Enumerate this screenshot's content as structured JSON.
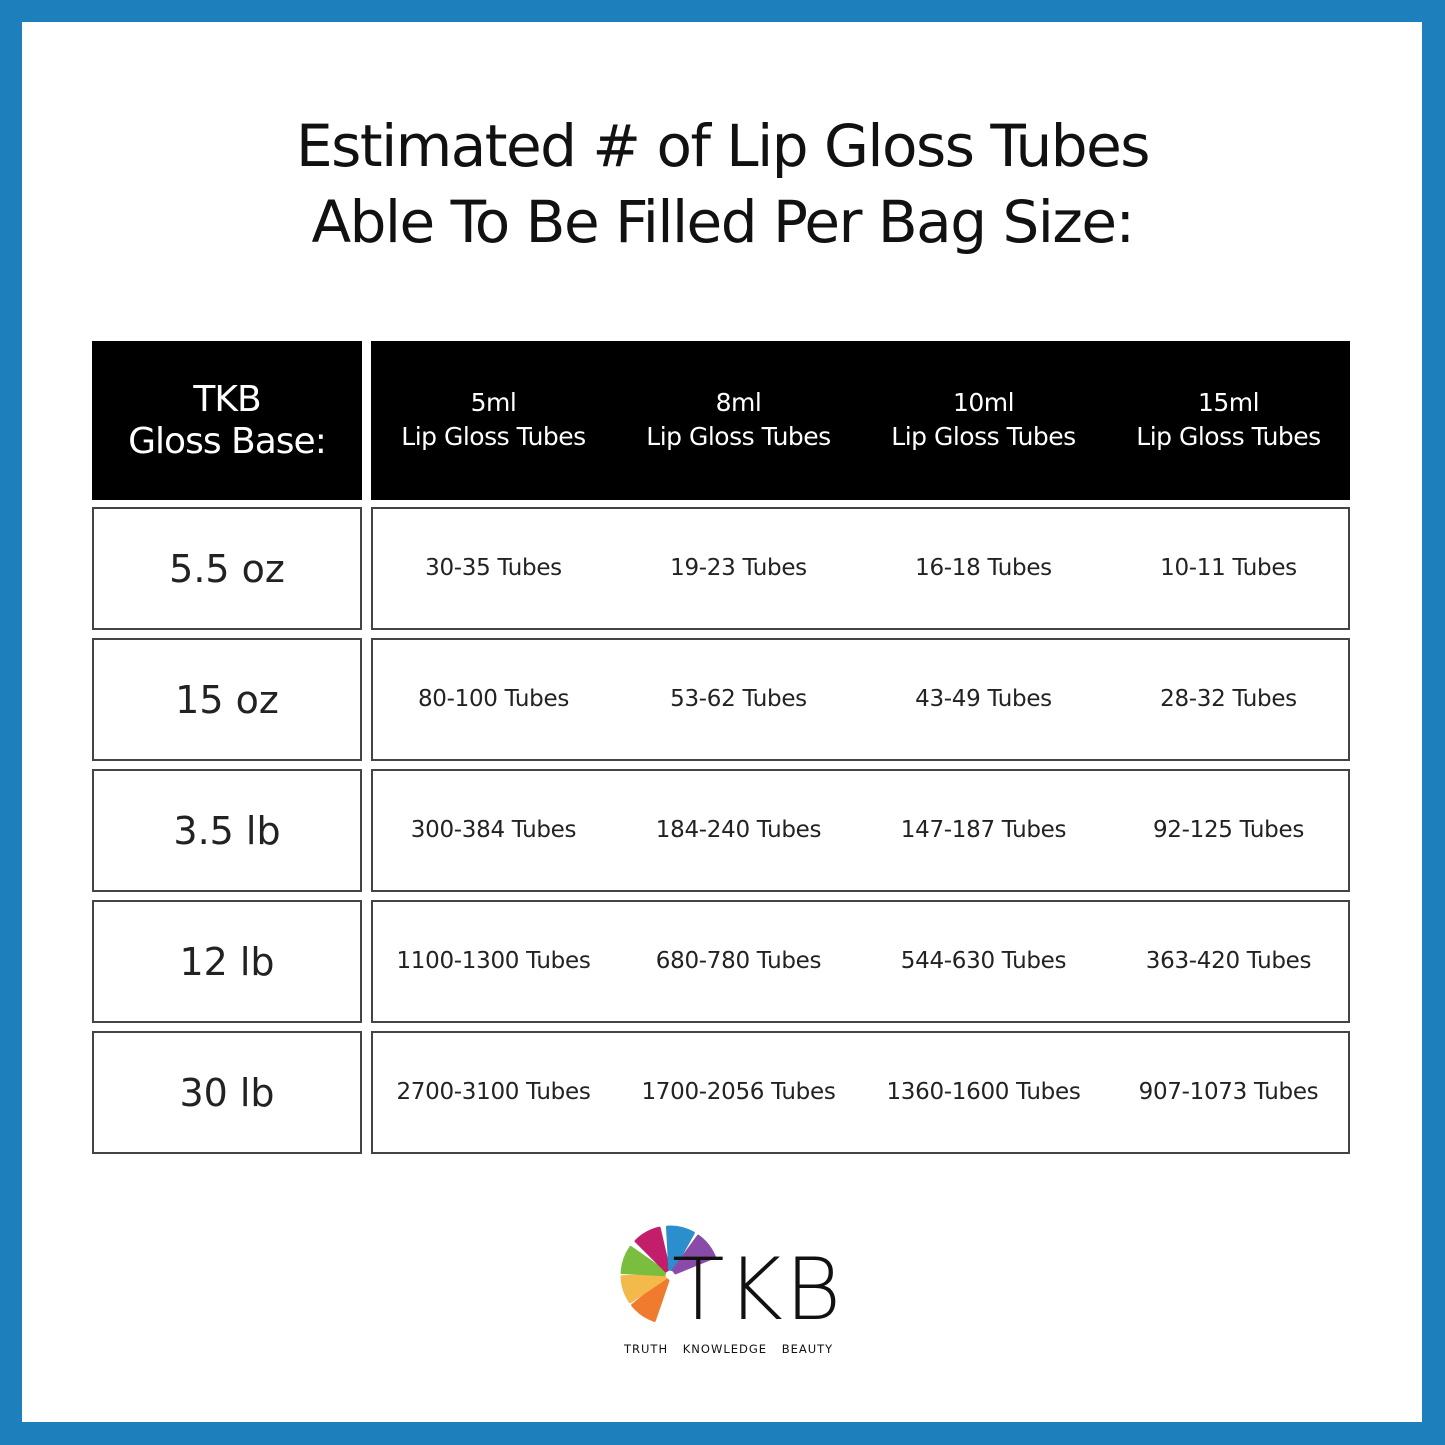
{
  "title": {
    "line1": "Estimated # of Lip Gloss Tubes",
    "line2": "Able To Be Filled Per Bag Size:"
  },
  "table": {
    "row_header": {
      "line1": "TKB",
      "line2": "Gloss Base:"
    },
    "columns": [
      {
        "size": "5ml",
        "label": "Lip Gloss Tubes"
      },
      {
        "size": "8ml",
        "label": "Lip Gloss Tubes"
      },
      {
        "size": "10ml",
        "label": "Lip Gloss Tubes"
      },
      {
        "size": "15ml",
        "label": "Lip Gloss Tubes"
      }
    ],
    "rows": [
      {
        "size": "5.5 oz",
        "values": [
          "30-35 Tubes",
          "19-23 Tubes",
          "16-18 Tubes",
          "10-11 Tubes"
        ]
      },
      {
        "size": "15 oz",
        "values": [
          "80-100 Tubes",
          "53-62 Tubes",
          "43-49 Tubes",
          "28-32 Tubes"
        ]
      },
      {
        "size": "3.5 lb",
        "values": [
          "300-384 Tubes",
          "184-240 Tubes",
          "147-187 Tubes",
          "92-125 Tubes"
        ]
      },
      {
        "size": "12 lb",
        "values": [
          "1100-1300 Tubes",
          "680-780 Tubes",
          "544-630 Tubes",
          "363-420 Tubes"
        ]
      },
      {
        "size": "30 lb",
        "values": [
          "2700-3100 Tubes",
          "1700-2056 Tubes",
          "1360-1600 Tubes",
          "907-1073 Tubes"
        ]
      }
    ]
  },
  "logo": {
    "wordmark": "TKB",
    "tagline": "TRUTH KNOWLEDGE BEAUTY",
    "wheel_colors": [
      "#f07a2e",
      "#f3b94a",
      "#7bbd3f",
      "#c21e6b",
      "#2a8fcc",
      "#8a4aa8"
    ]
  },
  "colors": {
    "frame": "#1d7fbc",
    "header_bg": "#000000"
  }
}
